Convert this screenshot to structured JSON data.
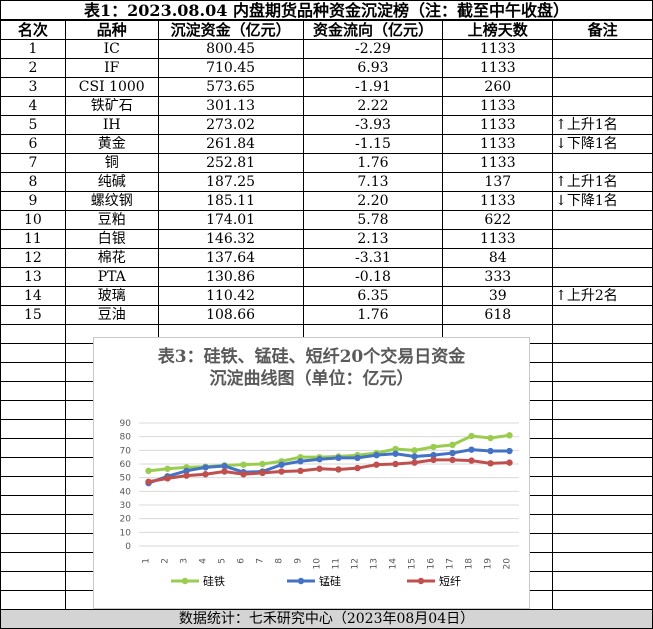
{
  "title": "表1：2023.08.04  内盘期货品种资金沉淀榜（注：截至中午收盘）",
  "headers": [
    "名次",
    "品种",
    "沉淀资金（亿元）",
    "资金流向（亿元）",
    "上榜天数",
    "备注"
  ],
  "rows": [
    [
      "1",
      "IC",
      "800.45",
      "-2.29",
      "1133",
      ""
    ],
    [
      "2",
      "IF",
      "710.45",
      "6.93",
      "1133",
      ""
    ],
    [
      "3",
      "CSI 1000",
      "573.65",
      "-1.91",
      "260",
      ""
    ],
    [
      "4",
      "铁矿石",
      "301.13",
      "2.22",
      "1133",
      ""
    ],
    [
      "5",
      "IH",
      "273.02",
      "-3.93",
      "1133",
      "↑上升1名"
    ],
    [
      "6",
      "黄金",
      "261.84",
      "-1.15",
      "1133",
      "↓下降1名"
    ],
    [
      "7",
      "铜",
      "252.81",
      "1.76",
      "1133",
      ""
    ],
    [
      "8",
      "纯碱",
      "187.25",
      "7.13",
      "137",
      "↑上升1名"
    ],
    [
      "9",
      "螺纹钢",
      "185.11",
      "2.20",
      "1133",
      "↓下降1名"
    ],
    [
      "10",
      "豆粕",
      "174.01",
      "5.78",
      "622",
      ""
    ],
    [
      "11",
      "白银",
      "146.32",
      "2.13",
      "1133",
      ""
    ],
    [
      "12",
      "棉花",
      "137.64",
      "-3.31",
      "84",
      ""
    ],
    [
      "13",
      "PTA",
      "130.86",
      "-0.18",
      "333",
      ""
    ],
    [
      "14",
      "玻璃",
      "110.42",
      "6.35",
      "39",
      "↑上升2名"
    ],
    [
      "15",
      "豆油",
      "108.66",
      "1.76",
      "618",
      ""
    ]
  ],
  "footer": "数据统计：七禾研究中心（2023年08月04日）",
  "chart_data": {
    "type": "line",
    "title_line1": "表3：硅铁、锰硅、短纤20个交易日资金",
    "title_line2": "沉淀曲线图（单位：亿元）",
    "x": [
      "1",
      "2",
      "3",
      "4",
      "5",
      "6",
      "7",
      "8",
      "9",
      "10",
      "11",
      "12",
      "13",
      "14",
      "15",
      "16",
      "17",
      "18",
      "19",
      "20"
    ],
    "ylim": [
      0,
      90
    ],
    "yticks": [
      "0",
      "10",
      "20",
      "30",
      "40",
      "50",
      "60",
      "70",
      "80",
      "90"
    ],
    "grid": true,
    "legend": "bottom",
    "series": [
      {
        "name": "硅铁",
        "color": "#9acd4f",
        "values": [
          55,
          56.5,
          57.5,
          58,
          59,
          59.5,
          60,
          62,
          65,
          65,
          65.5,
          66.5,
          68,
          71,
          70,
          72.5,
          74,
          80.5,
          79,
          81
        ]
      },
      {
        "name": "锰硅",
        "color": "#4472c4",
        "values": [
          46,
          51,
          55,
          57.5,
          58.5,
          54,
          54.5,
          59.5,
          62,
          63.5,
          64.5,
          64.5,
          66.5,
          67.5,
          65.5,
          66.5,
          68,
          70.5,
          69.5,
          69.5
        ]
      },
      {
        "name": "短纤",
        "color": "#c0504d",
        "values": [
          47,
          49.5,
          51.5,
          52.5,
          54.5,
          52.5,
          53.5,
          54.5,
          55,
          56.5,
          56,
          57,
          59.5,
          60,
          61,
          63,
          63,
          62.5,
          60.5,
          61
        ]
      }
    ]
  }
}
